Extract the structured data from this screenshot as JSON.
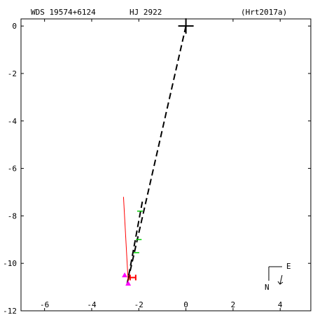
{
  "header": {
    "wds_id": "WDS 19574+6124",
    "discoverer": "HJ 2922",
    "reference": "(Hrt2017a)"
  },
  "chart_data": {
    "type": "scatter",
    "title": "",
    "xlabel": "",
    "ylabel": "",
    "xlim": [
      -7,
      5.3
    ],
    "ylim": [
      -12,
      0.3
    ],
    "x_ticks": [
      -6,
      -4,
      -2,
      0,
      2,
      4
    ],
    "y_ticks": [
      0,
      -2,
      -4,
      -6,
      -8,
      -10,
      -12
    ],
    "x_tick_labels": [
      "-6",
      "-4",
      "-2",
      "0",
      "2",
      "4"
    ],
    "y_tick_labels": [
      "0",
      "-2",
      "-4",
      "-6",
      "-8",
      "-10",
      "-12"
    ],
    "primary": {
      "x": 0,
      "y": 0,
      "marker": "plus",
      "color": "#000000"
    },
    "dashed_lines": [
      {
        "from": [
          0,
          0
        ],
        "to": [
          -2.5,
          -10.9
        ],
        "color": "#000000"
      },
      {
        "from": [
          -1.85,
          -7.4
        ],
        "to": [
          -2.5,
          -10.9
        ],
        "color": "#000000"
      }
    ],
    "solid_lines": [
      {
        "from": [
          -2.65,
          -7.2
        ],
        "to": [
          -2.45,
          -10.8
        ],
        "color": "#ff0000"
      }
    ],
    "series": [
      {
        "marker": "triangle",
        "color": "#ff00ff",
        "points": [
          [
            -2.6,
            -10.5
          ],
          [
            -2.45,
            -10.85
          ]
        ]
      },
      {
        "marker": "hbar",
        "color": "#00cc00",
        "points": [
          [
            -1.95,
            -7.8
          ],
          [
            -2.0,
            -9.0
          ],
          [
            -2.1,
            -9.55
          ]
        ]
      },
      {
        "marker": "H",
        "color": "#ff0000",
        "points": [
          [
            -2.25,
            -10.6
          ]
        ]
      }
    ],
    "orientation": {
      "north_label": "N",
      "east_label": "E"
    }
  }
}
